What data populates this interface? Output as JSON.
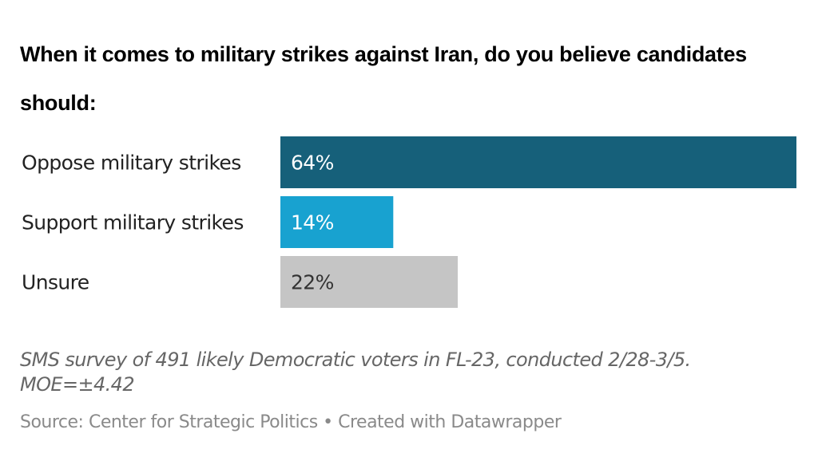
{
  "chart_data": {
    "type": "bar",
    "orientation": "horizontal",
    "title": "When it comes to military strikes against Iran, do you believe candidates should:",
    "categories": [
      "Oppose military strikes",
      "Support military strikes",
      "Unsure"
    ],
    "values": [
      64,
      14,
      22
    ],
    "data_labels": [
      "64%",
      "14%",
      "22%"
    ],
    "colors": [
      "#16607a",
      "#18a2d0",
      "#c5c5c5"
    ],
    "label_colors": [
      "#ffffff",
      "#ffffff",
      "#333333"
    ],
    "xlim": [
      0,
      64
    ],
    "grid": false,
    "unit": "%"
  },
  "notes": "SMS survey of 491 likely Democratic voters in FL-23, conducted 2/28-3/5. MOE=±4.42",
  "source": "Source: Center for Strategic Politics • Created with Datawrapper"
}
